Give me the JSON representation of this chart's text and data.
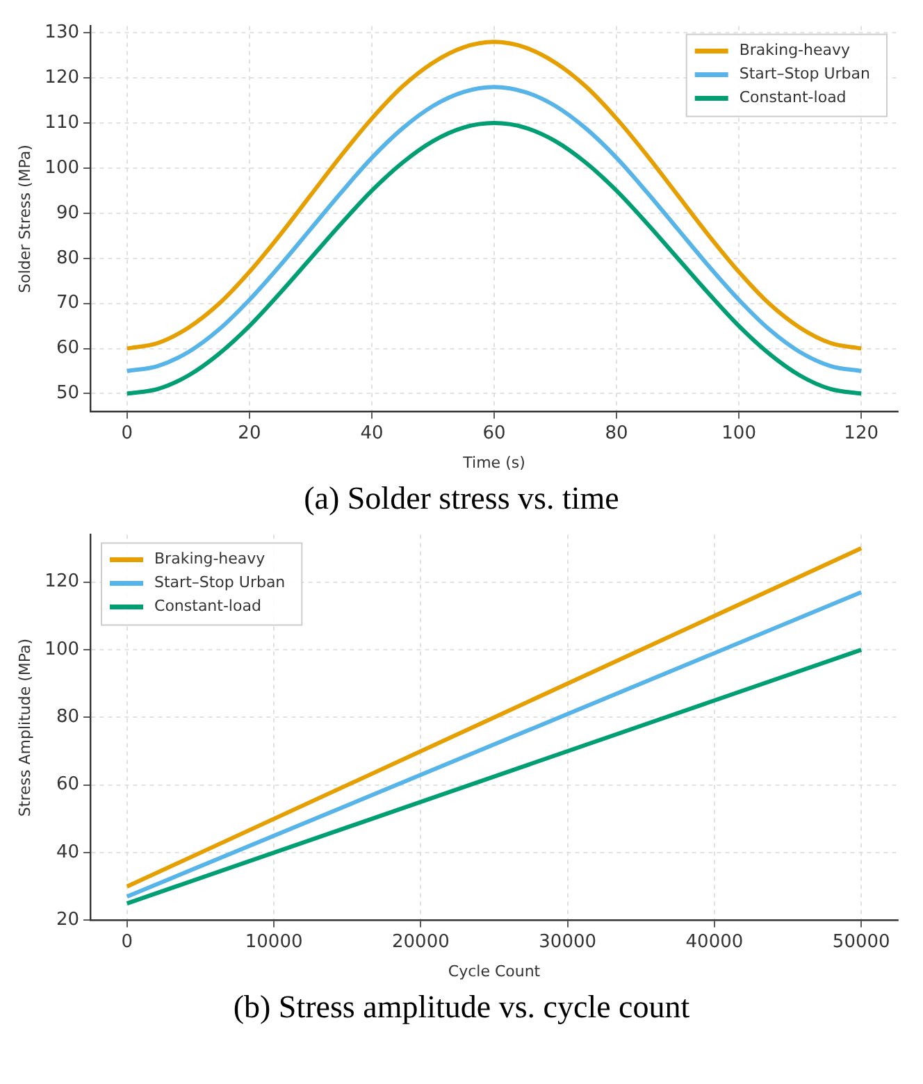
{
  "chart_data": [
    {
      "type": "line",
      "xlabel": "Time (s)",
      "ylabel": "Solder Stress (MPa)",
      "annotations": [
        "(a) Solder stress vs. time"
      ],
      "x": [
        0,
        5,
        10,
        15,
        20,
        25,
        30,
        35,
        40,
        45,
        50,
        55,
        60,
        65,
        70,
        75,
        80,
        85,
        90,
        95,
        100,
        105,
        110,
        115,
        120
      ],
      "series": [
        {
          "name": "Braking-heavy",
          "color": "#e69f00",
          "values": [
            60,
            61.2,
            64.6,
            69.9,
            77,
            85.2,
            94,
            102.8,
            111,
            118.1,
            123.4,
            126.8,
            128,
            126.8,
            123.4,
            118.1,
            111,
            102.8,
            94,
            85.2,
            77,
            69.9,
            64.6,
            61.2,
            60
          ]
        },
        {
          "name": "Start–Stop Urban",
          "color": "#56b4e9",
          "values": [
            55,
            56.1,
            59.2,
            64.2,
            70.8,
            78.4,
            86.5,
            94.6,
            102.3,
            108.8,
            113.8,
            116.9,
            118,
            116.9,
            113.8,
            108.8,
            102.3,
            94.6,
            86.5,
            78.4,
            70.8,
            64.2,
            59.2,
            56.1,
            55
          ]
        },
        {
          "name": "Constant-load",
          "color": "#009e73",
          "values": [
            50,
            51,
            54,
            58.8,
            65,
            72.3,
            80,
            87.7,
            95,
            101.2,
            106,
            109,
            110,
            109,
            106,
            101.2,
            95,
            87.7,
            80,
            72.3,
            65,
            58.8,
            54,
            51,
            50
          ]
        }
      ],
      "xlim": [
        -6,
        126
      ],
      "xticks": [
        0,
        20,
        40,
        60,
        80,
        100,
        120
      ],
      "ylim": [
        46,
        131.5
      ],
      "yticks": [
        50,
        60,
        70,
        80,
        90,
        100,
        110,
        120,
        130
      ],
      "grid": true,
      "legend": "top right",
      "line_style": "solid",
      "marker": "none"
    },
    {
      "type": "line",
      "xlabel": "Cycle Count",
      "ylabel": "Stress Amplitude (MPa)",
      "annotations": [
        "(b) Stress amplitude vs. cycle count"
      ],
      "x": [
        0,
        50000
      ],
      "series": [
        {
          "name": "Braking-heavy",
          "color": "#e69f00",
          "values": [
            30,
            130
          ]
        },
        {
          "name": "Start–Stop Urban",
          "color": "#56b4e9",
          "values": [
            27,
            117
          ]
        },
        {
          "name": "Constant-load",
          "color": "#009e73",
          "values": [
            25,
            100
          ]
        }
      ],
      "xlim": [
        -2500,
        52500
      ],
      "xticks": [
        0,
        10000,
        20000,
        30000,
        40000,
        50000
      ],
      "ylim": [
        20,
        134
      ],
      "yticks": [
        20,
        40,
        60,
        80,
        100,
        120
      ],
      "grid": true,
      "legend": "top left",
      "line_style": "solid",
      "marker": "none"
    }
  ]
}
